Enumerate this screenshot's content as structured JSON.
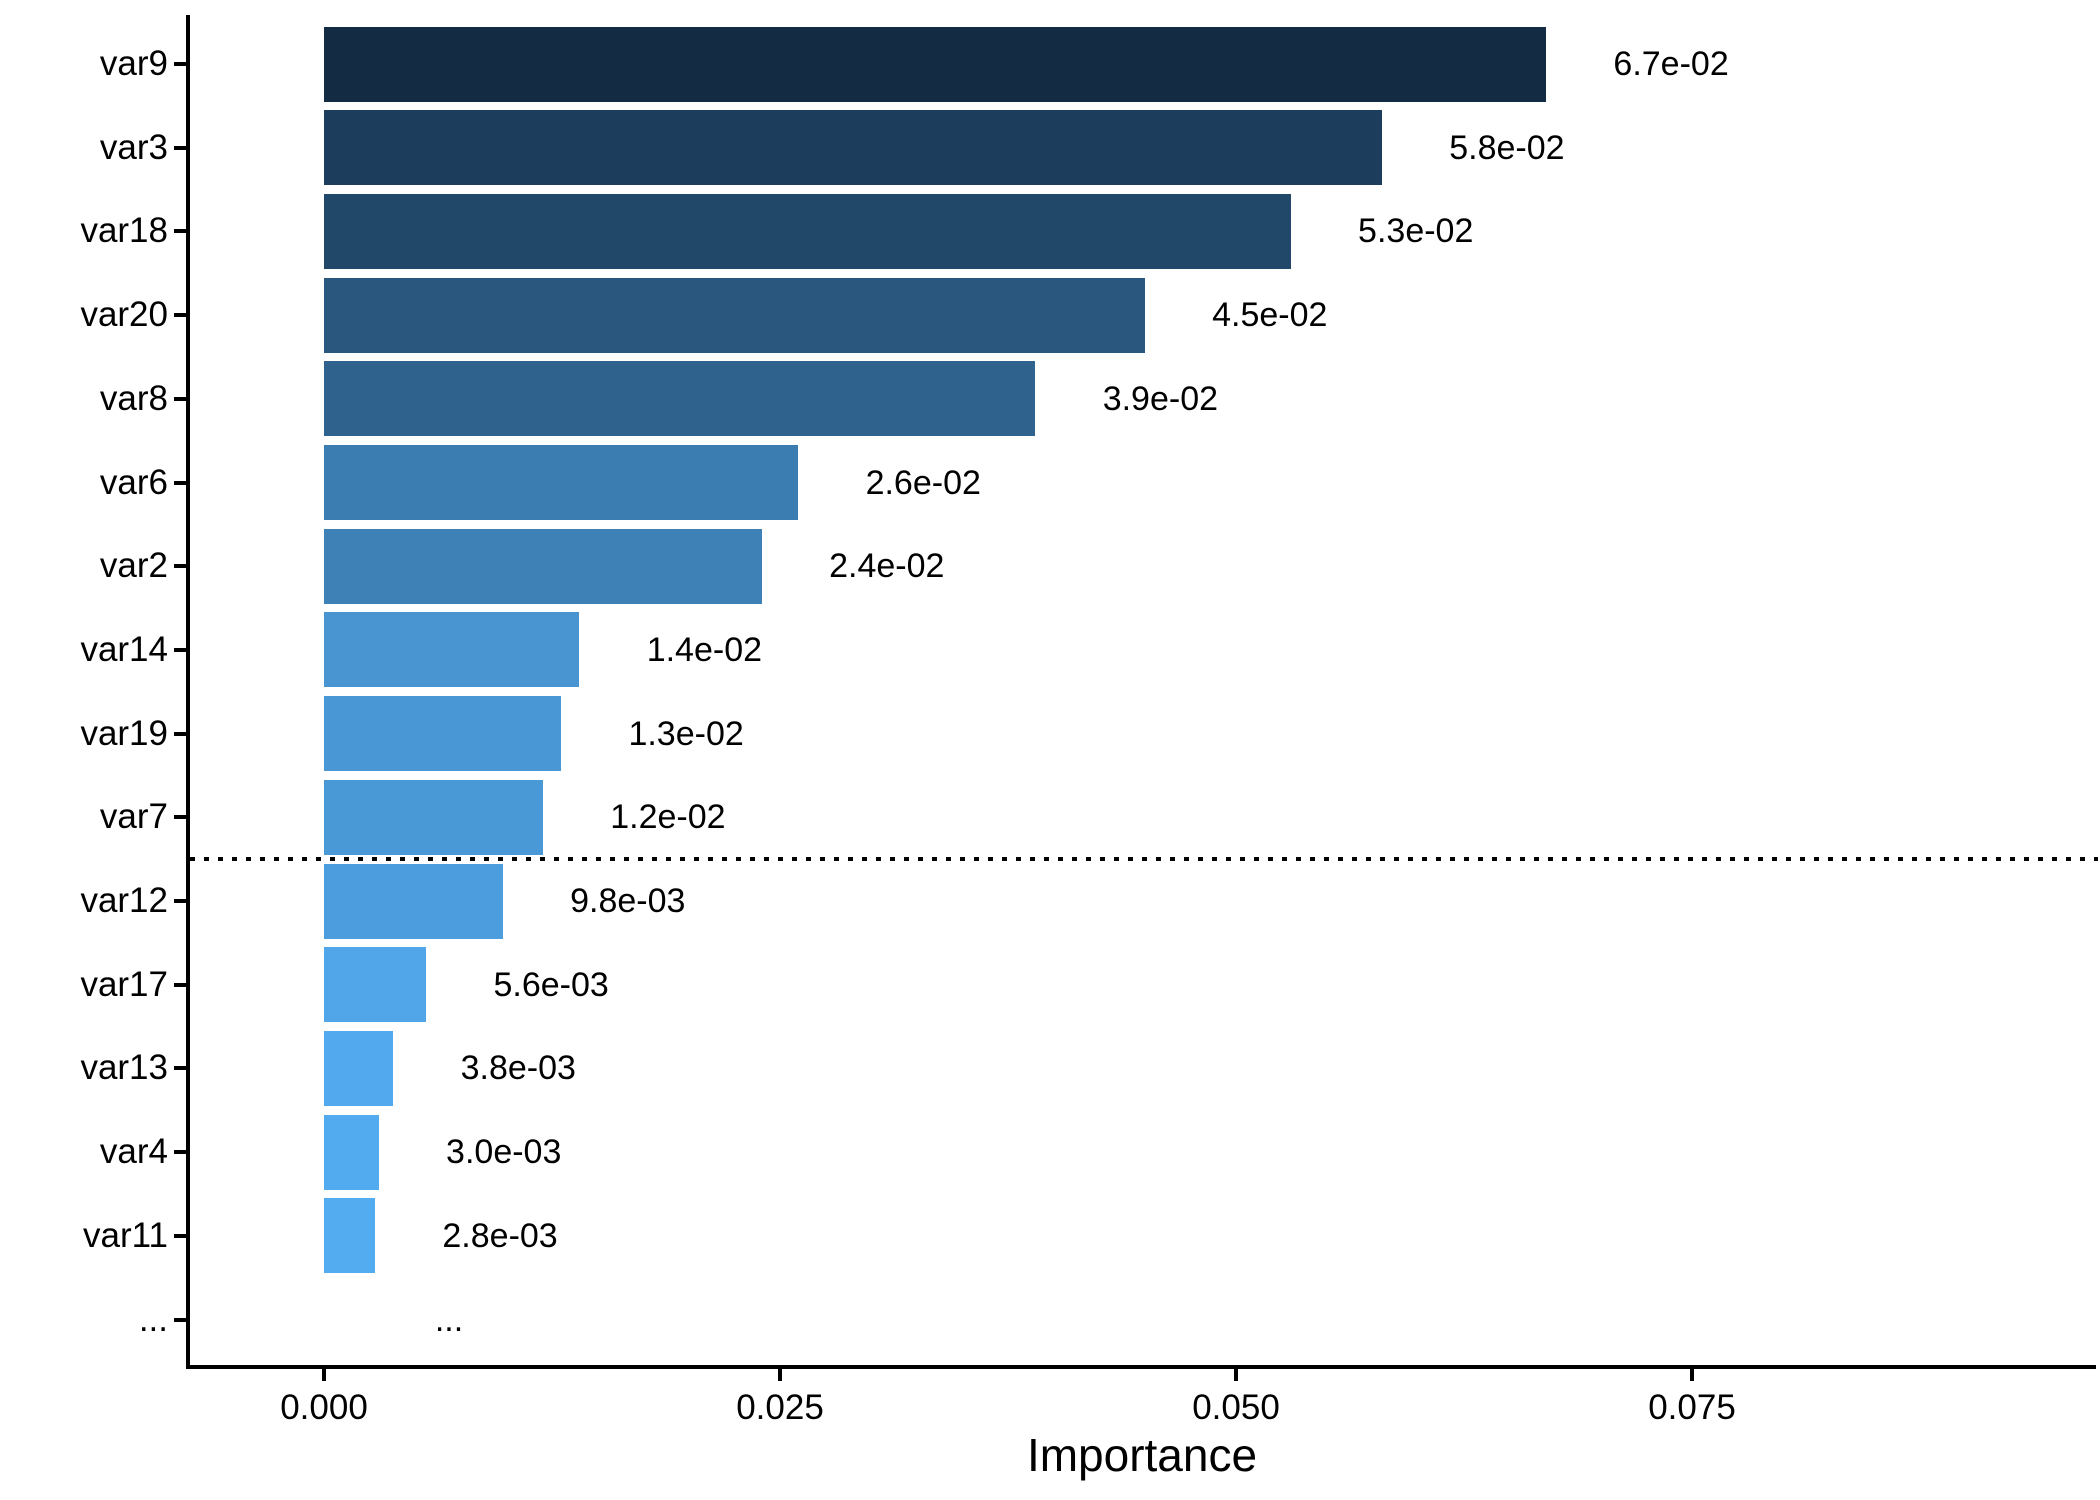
{
  "chart_data": {
    "type": "bar",
    "orientation": "horizontal",
    "title": "",
    "xlabel": "Importance",
    "ylabel": "",
    "categories": [
      "var9",
      "var3",
      "var18",
      "var20",
      "var8",
      "var6",
      "var2",
      "var14",
      "var19",
      "var7",
      "var12",
      "var17",
      "var13",
      "var4",
      "var11",
      "..."
    ],
    "values": [
      0.067,
      0.058,
      0.053,
      0.045,
      0.039,
      0.026,
      0.024,
      0.014,
      0.013,
      0.012,
      0.0098,
      0.0056,
      0.0038,
      0.003,
      0.0028,
      null
    ],
    "value_labels": [
      "6.7e-02",
      "5.8e-02",
      "5.3e-02",
      "4.5e-02",
      "3.9e-02",
      "2.6e-02",
      "2.4e-02",
      "1.4e-02",
      "1.3e-02",
      "1.2e-02",
      "9.8e-03",
      "5.6e-03",
      "3.8e-03",
      "3.0e-03",
      "2.8e-03",
      "..."
    ],
    "bar_colors": [
      "#132B43",
      "#1C3D5B",
      "#214769",
      "#29577E",
      "#2F638E",
      "#3C7DB1",
      "#3E81B7",
      "#4895D1",
      "#4997D4",
      "#4A99D7",
      "#4C9DDD",
      "#50A6E8",
      "#52A9ED",
      "#53ABEF",
      "#53ABF0",
      null
    ],
    "x_ticks": [
      "0.000",
      "0.025",
      "0.050",
      "0.075"
    ],
    "x_tick_values": [
      0,
      0.025,
      0.05,
      0.075
    ],
    "xlim": [
      -0.0075,
      0.0975
    ],
    "grid": false,
    "legend": false,
    "cutoff_line": {
      "after_category": "var7",
      "after_index": 9,
      "style": "dotted",
      "color": "#000000"
    },
    "axis_color": "#000000",
    "text_color": "#000000",
    "fill_gradient": {
      "high_value_color": "#132B43",
      "low_value_color": "#56B1F7"
    }
  }
}
